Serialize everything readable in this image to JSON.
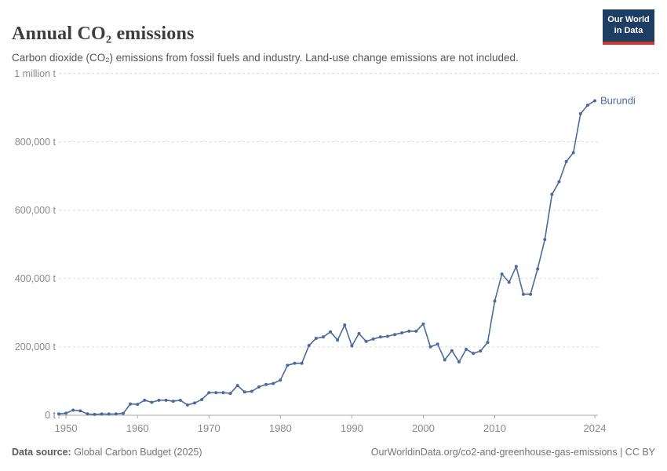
{
  "header": {
    "title": "Annual CO₂ emissions",
    "subtitle": "Carbon dioxide (CO₂) emissions from fossil fuels and industry. Land-use change emissions are not included."
  },
  "logo": {
    "line1": "Our World",
    "line2": "in Data"
  },
  "footer": {
    "source_label": "Data source:",
    "source_text": " Global Carbon Budget (2025)",
    "link_text": "OurWorldinData.org/co2-and-greenhouse-gas-emissions | CC BY"
  },
  "colors": {
    "line": "#4C6A9C",
    "entity_label": "#4C6A9C",
    "grid": "#dcdcdc",
    "axis": "#a8a8a8",
    "tick_label": "#8a8a8a",
    "title": "#3d3d3d",
    "subtitle": "#575757",
    "footer": "#757575",
    "footer_bold": "#5a5a5a",
    "logo_bg": "#1d3d63",
    "logo_red": "#d0342c"
  },
  "chart_data": {
    "type": "line",
    "title": "Annual CO₂ emissions",
    "xlabel": "",
    "ylabel": "",
    "xlim": [
      1949,
      2024
    ],
    "ylim": [
      0,
      1000000
    ],
    "grid": true,
    "legend_position": "end-of-line-label",
    "series_name": "Burundi",
    "x_ticks": [
      1950,
      1960,
      1970,
      1980,
      1990,
      2000,
      2010,
      2024
    ],
    "y_ticks": [
      {
        "value": 1000000,
        "label": "1 million t",
        "full_width": true
      },
      {
        "value": 800000,
        "label": "800,000 t",
        "full_width": false
      },
      {
        "value": 600000,
        "label": "600,000 t",
        "full_width": false
      },
      {
        "value": 400000,
        "label": "400,000 t",
        "full_width": false
      },
      {
        "value": 200000,
        "label": "200,000 t",
        "full_width": false
      },
      {
        "value": 0,
        "label": "0 t",
        "full_width": false
      }
    ],
    "x": [
      1949,
      1950,
      1951,
      1952,
      1953,
      1954,
      1955,
      1956,
      1957,
      1958,
      1959,
      1960,
      1961,
      1962,
      1963,
      1964,
      1965,
      1966,
      1967,
      1968,
      1969,
      1970,
      1971,
      1972,
      1973,
      1974,
      1975,
      1976,
      1977,
      1978,
      1979,
      1980,
      1981,
      1982,
      1983,
      1984,
      1985,
      1986,
      1987,
      1988,
      1989,
      1990,
      1991,
      1992,
      1993,
      1994,
      1995,
      1996,
      1997,
      1998,
      1999,
      2000,
      2001,
      2002,
      2003,
      2004,
      2005,
      2006,
      2007,
      2008,
      2009,
      2010,
      2011,
      2012,
      2013,
      2014,
      2015,
      2016,
      2017,
      2018,
      2019,
      2020,
      2021,
      2022,
      2023,
      2024
    ],
    "values": [
      4000,
      6000,
      15000,
      13000,
      4000,
      2500,
      3700,
      3700,
      4000,
      5500,
      33000,
      32000,
      44000,
      38000,
      44000,
      44000,
      41000,
      44000,
      30000,
      36000,
      46000,
      66000,
      66000,
      66000,
      64000,
      87000,
      68000,
      70000,
      83000,
      90000,
      93000,
      103000,
      146000,
      152000,
      152000,
      204000,
      225000,
      229000,
      244000,
      220000,
      264000,
      203000,
      239000,
      216000,
      223000,
      229000,
      231000,
      236000,
      241000,
      246000,
      246000,
      267000,
      200000,
      208000,
      162000,
      189000,
      156000,
      193000,
      181000,
      188000,
      213000,
      334000,
      413000,
      389000,
      435000,
      354000,
      354000,
      428000,
      514000,
      646000,
      683000,
      742000,
      768000,
      882000,
      907000,
      920000
    ]
  }
}
